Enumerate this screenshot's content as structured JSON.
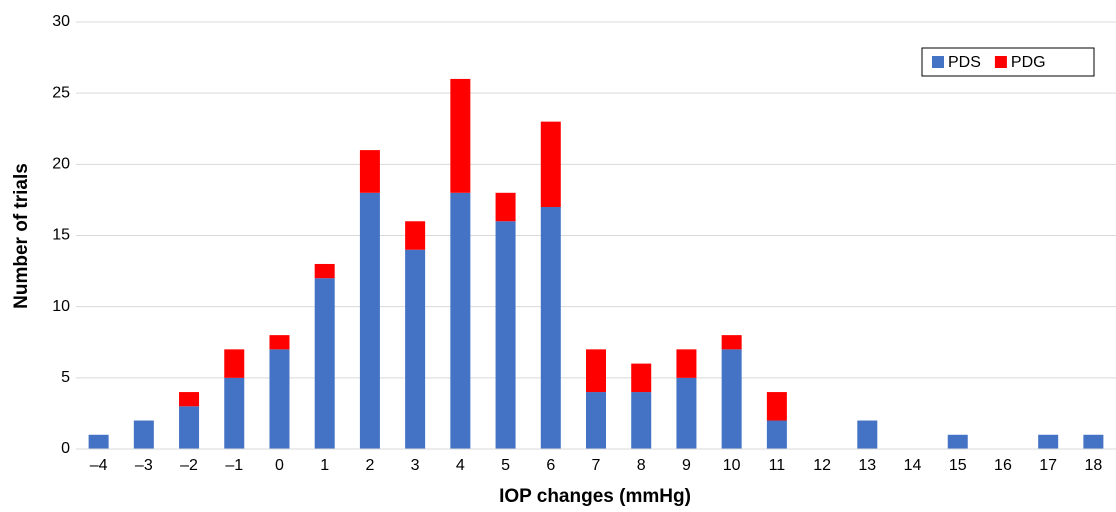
{
  "chart_data": {
    "type": "stacked-bar",
    "x_label": "IOP changes (mmHg)",
    "y_label": "Number of trials",
    "categories": [
      "–4",
      "–3",
      "–2",
      "–1",
      "0",
      "1",
      "2",
      "3",
      "4",
      "5",
      "6",
      "7",
      "8",
      "9",
      "10",
      "11",
      "12",
      "13",
      "14",
      "15",
      "16",
      "17",
      "18"
    ],
    "series": [
      {
        "name": "PDS",
        "color": "#4472c4",
        "values": [
          1,
          2,
          3,
          5,
          7,
          12,
          18,
          14,
          18,
          16,
          17,
          4,
          4,
          5,
          7,
          2,
          0,
          2,
          0,
          1,
          0,
          1,
          1
        ]
      },
      {
        "name": "PDG",
        "color": "#ff0000",
        "values": [
          0,
          0,
          1,
          2,
          1,
          1,
          3,
          2,
          8,
          2,
          6,
          3,
          2,
          2,
          1,
          2,
          0,
          0,
          0,
          0,
          0,
          0,
          0
        ]
      }
    ],
    "ylim": [
      0,
      30
    ],
    "yticks": [
      0,
      5,
      10,
      15,
      20,
      25,
      30
    ],
    "grid": true,
    "legend": "top-right"
  }
}
